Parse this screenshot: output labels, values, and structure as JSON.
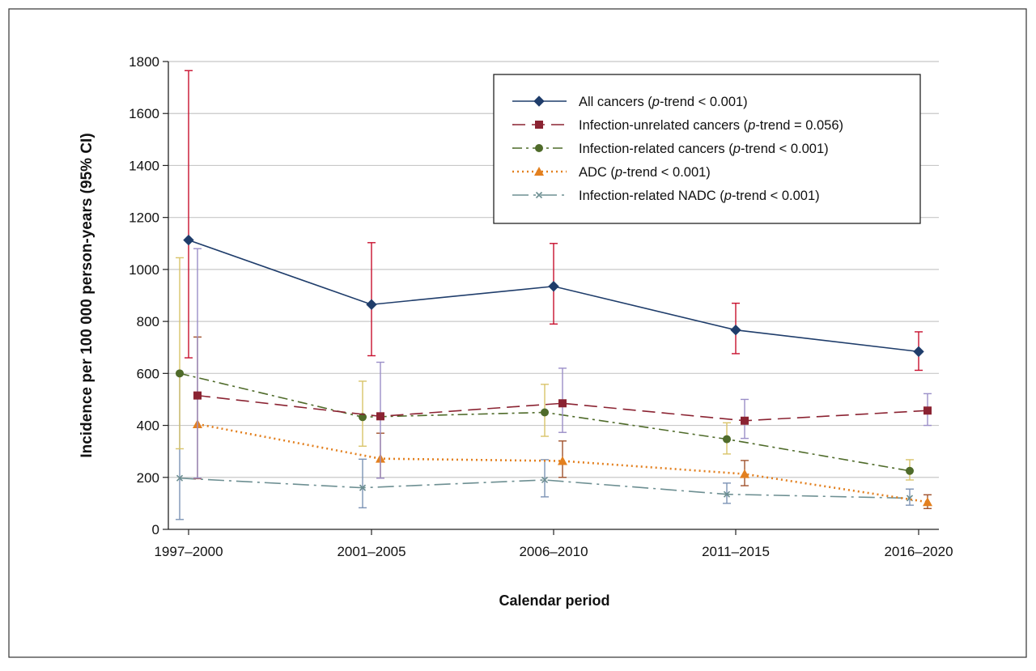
{
  "chart_data": {
    "type": "line",
    "xlabel": "Calendar period",
    "ylabel": "Incidence per 100 000 person-years (95% CI)",
    "categories": [
      "1997–2000",
      "2001–2005",
      "2006–2010",
      "2011–2015",
      "2016–2020"
    ],
    "ylim": [
      0,
      1800
    ],
    "yticks": [
      0,
      200,
      400,
      600,
      800,
      1000,
      1200,
      1400,
      1600,
      1800
    ],
    "grid": true,
    "legend_position": "top-right",
    "series": [
      {
        "name": "All cancers",
        "trend_label": "p-trend < 0.001",
        "color": "#1f3d6b",
        "errcolor": "#c8102e",
        "marker": "diamond",
        "dash": "solid",
        "values": [
          1113,
          865,
          935,
          767,
          684
        ],
        "lower": [
          660,
          668,
          790,
          676,
          612
        ],
        "upper": [
          1765,
          1103,
          1100,
          870,
          760
        ]
      },
      {
        "name": "Infection-unrelated cancers",
        "trend_label": "p-trend = 0.056",
        "color": "#8b2332",
        "errcolor": "#9b8fc8",
        "marker": "square",
        "dash": "longdash",
        "values": [
          515,
          435,
          485,
          418,
          457
        ],
        "lower": [
          197,
          197,
          373,
          350,
          400
        ],
        "upper": [
          1080,
          643,
          620,
          500,
          522
        ]
      },
      {
        "name": "Infection-related cancers",
        "trend_label": "p-trend < 0.001",
        "color": "#4f6b2a",
        "errcolor": "#d9c46a",
        "marker": "circle",
        "dash": "dashdot",
        "values": [
          600,
          432,
          450,
          347,
          225
        ],
        "lower": [
          310,
          320,
          358,
          290,
          190
        ],
        "upper": [
          1045,
          570,
          558,
          410,
          268
        ]
      },
      {
        "name": "ADC",
        "trend_label": "p-trend < 0.001",
        "color": "#e3801f",
        "errcolor": "#a0522d",
        "marker": "triangle",
        "dash": "dotted",
        "values": [
          405,
          272,
          263,
          213,
          105
        ],
        "lower": [
          195,
          197,
          200,
          168,
          80
        ],
        "upper": [
          740,
          370,
          340,
          265,
          133
        ]
      },
      {
        "name": "Infection-related NADC",
        "trend_label": "p-trend < 0.001",
        "color": "#6d8f92",
        "errcolor": "#7c93b5",
        "marker": "x",
        "dash": "longdashdot",
        "values": [
          197,
          160,
          190,
          135,
          120
        ],
        "lower": [
          38,
          83,
          125,
          100,
          93
        ],
        "upper": [
          600,
          270,
          268,
          178,
          155
        ]
      }
    ]
  }
}
